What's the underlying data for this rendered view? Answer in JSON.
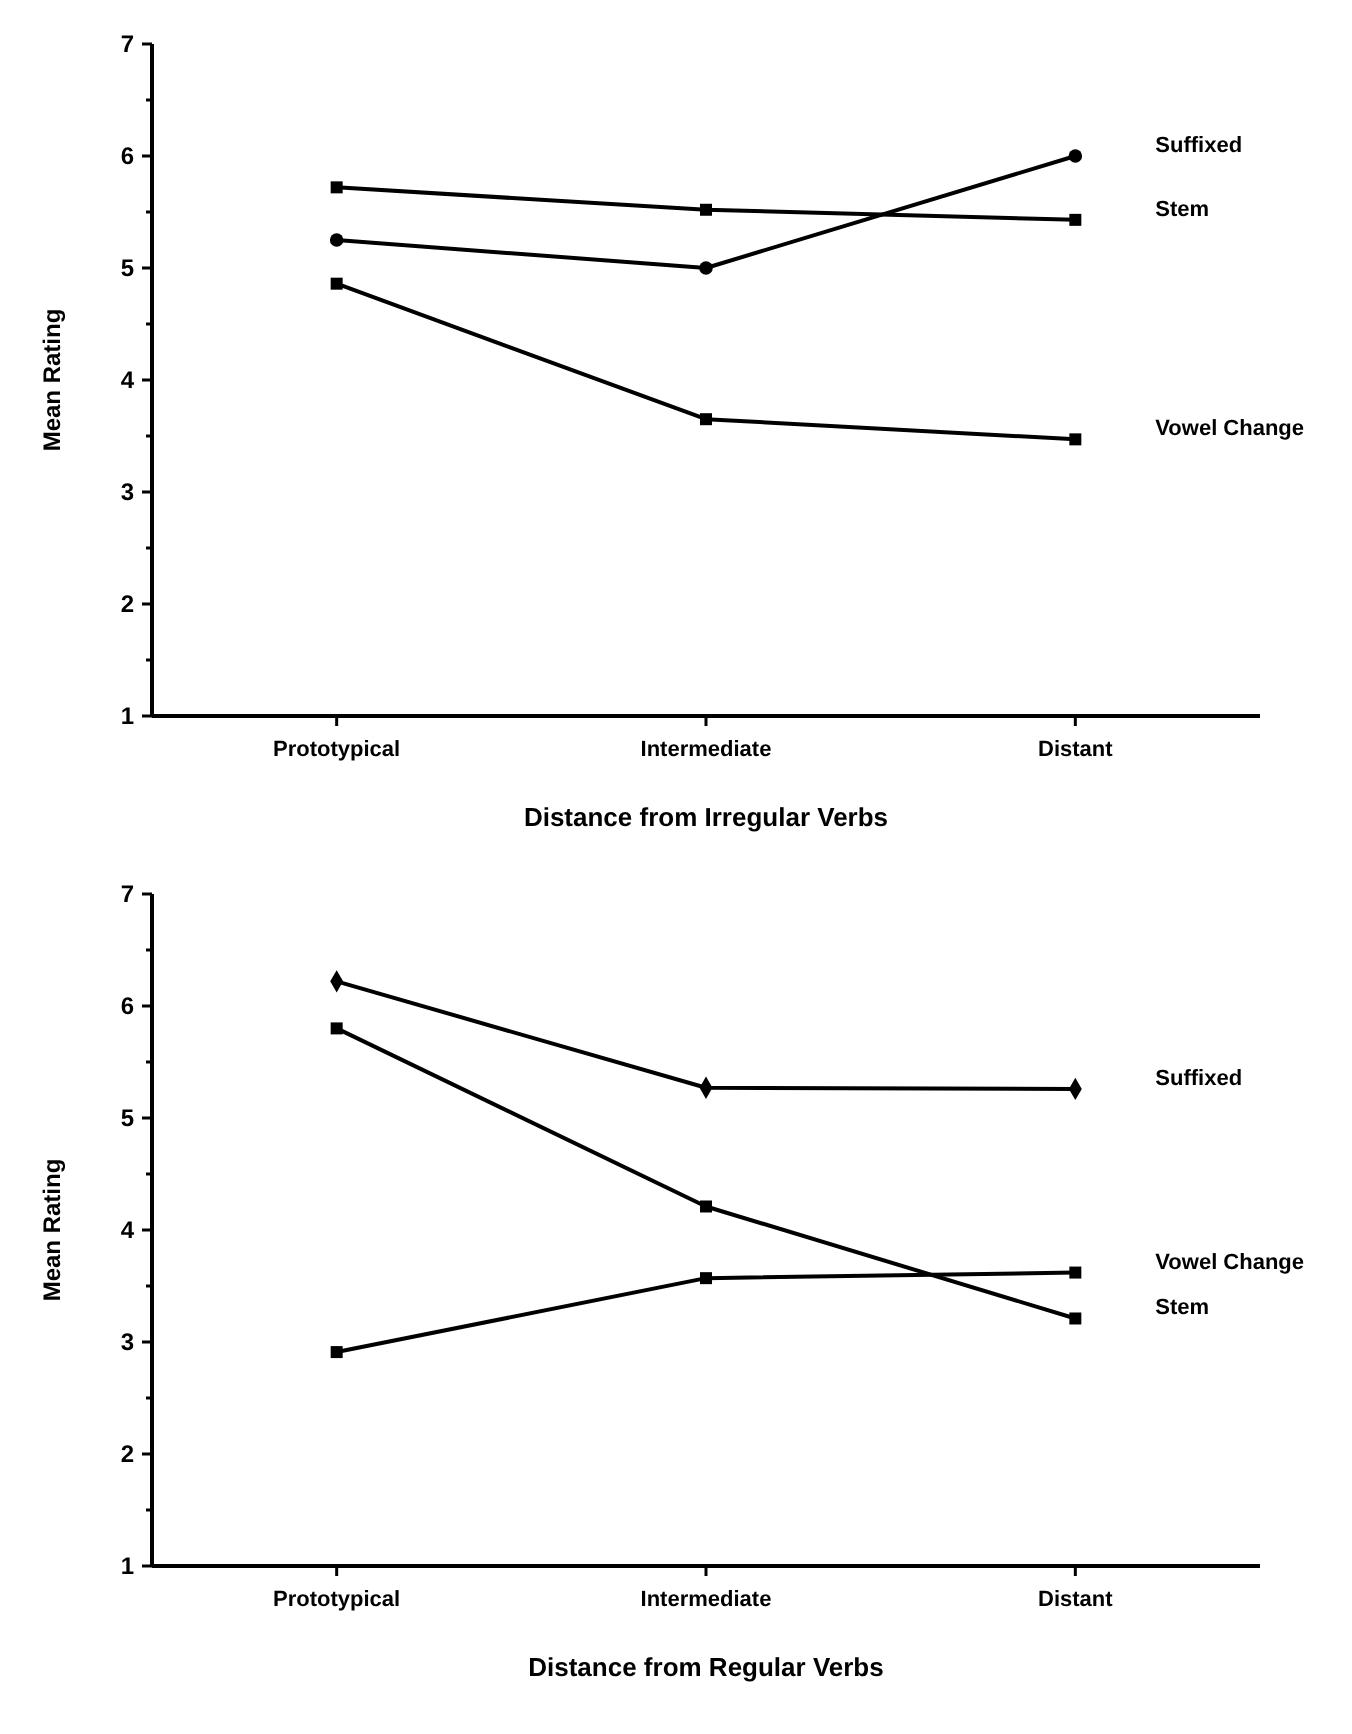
{
  "chart_data": [
    {
      "type": "line",
      "xlabel": "Distance from Irregular Verbs",
      "ylabel": "Mean Rating",
      "categories": [
        "Prototypical",
        "Intermediate",
        "Distant"
      ],
      "ylim": [
        1,
        7
      ],
      "yticks": [
        1,
        {
          "value": 1.5,
          "label": null
        },
        2,
        {
          "value": 2.5,
          "label": null
        },
        3,
        {
          "value": 3.5,
          "label": null
        },
        4,
        {
          "value": 4.5,
          "label": null
        },
        5,
        {
          "value": 5.5,
          "label": null
        },
        6,
        {
          "value": 6.5,
          "label": null
        },
        7
      ],
      "grid": false,
      "legend": false,
      "line_style": "solid",
      "series": [
        {
          "name": "Suffixed",
          "color": "#000000",
          "marker": "circle",
          "values": [
            5.25,
            5.0,
            6.0
          ]
        },
        {
          "name": "Stem",
          "color": "#000000",
          "marker": "square",
          "values": [
            5.72,
            5.52,
            5.43
          ]
        },
        {
          "name": "Vowel Change",
          "color": "#000000",
          "marker": "square",
          "values": [
            4.86,
            3.65,
            3.47
          ]
        }
      ]
    },
    {
      "type": "line",
      "xlabel": "Distance from Regular Verbs",
      "ylabel": "Mean Rating",
      "categories": [
        "Prototypical",
        "Intermediate",
        "Distant"
      ],
      "ylim": [
        1,
        7
      ],
      "yticks": [
        1,
        {
          "value": 1.5,
          "label": null
        },
        2,
        {
          "value": 2.5,
          "label": null
        },
        3,
        {
          "value": 3.5,
          "label": null
        },
        4,
        {
          "value": 4.5,
          "label": null
        },
        5,
        {
          "value": 5.5,
          "label": null
        },
        6,
        {
          "value": 6.5,
          "label": null
        },
        7
      ],
      "grid": false,
      "legend": false,
      "line_style": "solid",
      "series": [
        {
          "name": "Suffixed",
          "color": "#000000",
          "marker": "diamond",
          "values": [
            6.22,
            5.27,
            5.26
          ]
        },
        {
          "name": "Vowel Change",
          "color": "#000000",
          "marker": "square",
          "values": [
            2.91,
            3.57,
            3.62
          ]
        },
        {
          "name": "Stem",
          "color": "#000000",
          "marker": "square",
          "values": [
            5.8,
            4.21,
            3.21
          ]
        }
      ]
    }
  ]
}
